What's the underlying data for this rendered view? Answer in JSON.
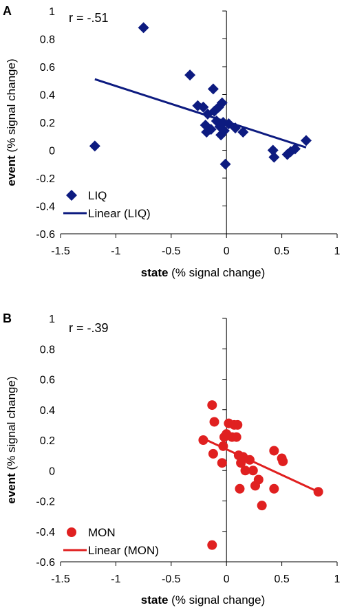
{
  "chart_data": [
    {
      "type": "scatter",
      "panel": "A",
      "annotation": "r = -.51",
      "xlabel_bold": "state",
      "xlabel_rest": " (% signal change)",
      "ylabel_bold": "event",
      "ylabel_rest": " (% signal change)",
      "xlim": [
        -1.5,
        1
      ],
      "ylim": [
        -0.6,
        1
      ],
      "xticks": [
        -1.5,
        -1,
        -0.5,
        0,
        0.5,
        1
      ],
      "xtick_labels": [
        "-1.5",
        "-1",
        "-0.5",
        "0",
        "0.5",
        "1"
      ],
      "yticks": [
        -0.6,
        -0.4,
        -0.2,
        0,
        0.2,
        0.4,
        0.6,
        0.8,
        1
      ],
      "ytick_labels": [
        "-0.6",
        "-0.4",
        "-0.2",
        "0",
        "0.2",
        "0.4",
        "0.6",
        "0.8",
        "1"
      ],
      "grid": false,
      "legend": "bottom-left",
      "marker": "diamond",
      "color": "#0d1b80",
      "series": [
        {
          "name": "LIQ",
          "points": [
            [
              -0.75,
              0.88
            ],
            [
              -1.19,
              0.03
            ],
            [
              -0.33,
              0.54
            ],
            [
              -0.12,
              0.44
            ],
            [
              -0.26,
              0.32
            ],
            [
              -0.21,
              0.31
            ],
            [
              -0.17,
              0.26
            ],
            [
              -0.19,
              0.18
            ],
            [
              -0.18,
              0.13
            ],
            [
              -0.14,
              0.15
            ],
            [
              -0.11,
              0.28
            ],
            [
              -0.09,
              0.21
            ],
            [
              -0.07,
              0.31
            ],
            [
              -0.06,
              0.17
            ],
            [
              -0.05,
              0.11
            ],
            [
              -0.04,
              0.34
            ],
            [
              -0.03,
              0.2
            ],
            [
              -0.02,
              0.14
            ],
            [
              -0.01,
              -0.1
            ],
            [
              0.02,
              0.19
            ],
            [
              0.08,
              0.16
            ],
            [
              0.15,
              0.13
            ],
            [
              0.42,
              -0.0
            ],
            [
              0.43,
              -0.05
            ],
            [
              0.55,
              -0.03
            ],
            [
              0.58,
              -0.01
            ],
            [
              0.62,
              0.01
            ],
            [
              0.72,
              0.07
            ]
          ]
        }
      ],
      "trendline": {
        "name": "Linear (LIQ)",
        "x": [
          -1.19,
          0.72
        ],
        "y": [
          0.51,
          0.02
        ]
      }
    },
    {
      "type": "scatter",
      "panel": "B",
      "annotation": "r = -.39",
      "xlabel_bold": "state",
      "xlabel_rest": " (% signal change)",
      "ylabel_bold": "event",
      "ylabel_rest": " (% signal change)",
      "xlim": [
        -1.5,
        1
      ],
      "ylim": [
        -0.6,
        1
      ],
      "xticks": [
        -1.5,
        -1,
        -0.5,
        0,
        0.5,
        1
      ],
      "xtick_labels": [
        "-1.5",
        "-1",
        "-0.5",
        "0",
        "0.5",
        "1"
      ],
      "yticks": [
        -0.6,
        -0.4,
        -0.2,
        0,
        0.2,
        0.4,
        0.6,
        0.8,
        1
      ],
      "ytick_labels": [
        "-0.6",
        "-0.4",
        "-0.2",
        "0",
        "0.2",
        "0.4",
        "0.6",
        "0.8",
        "1"
      ],
      "grid": false,
      "legend": "bottom-left",
      "marker": "circle",
      "color": "#e02020",
      "series": [
        {
          "name": "MON",
          "points": [
            [
              -0.13,
              0.43
            ],
            [
              -0.21,
              0.2
            ],
            [
              -0.11,
              0.32
            ],
            [
              -0.12,
              0.11
            ],
            [
              -0.13,
              -0.49
            ],
            [
              -0.04,
              0.05
            ],
            [
              -0.03,
              0.16
            ],
            [
              -0.02,
              0.22
            ],
            [
              0.0,
              0.24
            ],
            [
              0.02,
              0.31
            ],
            [
              0.05,
              0.22
            ],
            [
              0.07,
              0.3
            ],
            [
              0.09,
              0.22
            ],
            [
              0.1,
              0.3
            ],
            [
              0.11,
              0.1
            ],
            [
              0.13,
              0.05
            ],
            [
              0.15,
              0.09
            ],
            [
              0.12,
              -0.12
            ],
            [
              0.17,
              0.0
            ],
            [
              0.21,
              0.07
            ],
            [
              0.24,
              0.0
            ],
            [
              0.26,
              -0.1
            ],
            [
              0.29,
              -0.06
            ],
            [
              0.32,
              -0.23
            ],
            [
              0.43,
              0.13
            ],
            [
              0.43,
              -0.12
            ],
            [
              0.5,
              0.08
            ],
            [
              0.51,
              0.06
            ],
            [
              0.83,
              -0.14
            ]
          ]
        }
      ],
      "trendline": {
        "name": "Linear (MON)",
        "x": [
          -0.21,
          0.83
        ],
        "y": [
          0.21,
          -0.14
        ]
      }
    }
  ]
}
